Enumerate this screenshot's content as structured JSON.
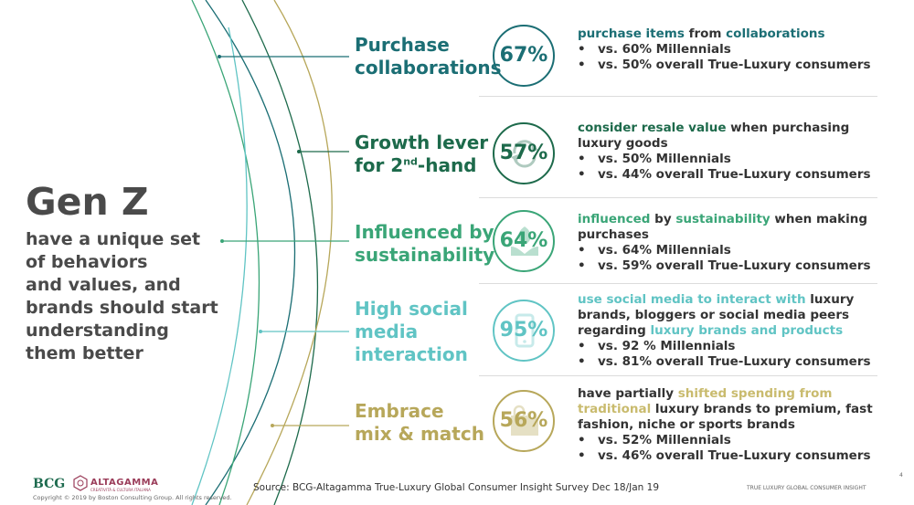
{
  "hero": {
    "title": "Gen Z",
    "subtitle": [
      "have a unique set",
      "of behaviors",
      "and values, and",
      "brands should start",
      "understanding",
      "them better"
    ]
  },
  "colors": {
    "teal_dark": "#1b6e74",
    "green_dark": "#1d6a4b",
    "green": "#3aa577",
    "aqua": "#60c4c4",
    "khaki": "#b7a75a",
    "separator": "#dcdcdc"
  },
  "rows": [
    {
      "label_lines": [
        "Purchase",
        "collaborations"
      ],
      "percent": "67%",
      "icon": "none",
      "desc_lines": [
        [
          {
            "t": "purchase items",
            "c": "#1b6e74"
          },
          {
            "t": " from ",
            "c": "#333"
          },
          {
            "t": "collaborations",
            "c": "#1b6e74"
          }
        ]
      ],
      "bullets": [
        "vs. 60% Millennials",
        "vs. 50% overall True-Luxury consumers"
      ]
    },
    {
      "label_lines": [
        "Growth lever",
        "for 2"
      ],
      "label_sup": "nd",
      "label_tail": "-hand",
      "percent": "57%",
      "icon": "recycle-arrows-icon",
      "desc_lines": [
        [
          {
            "t": "consider resale value",
            "c": "#1d6a4b"
          },
          {
            "t": " when purchasing",
            "c": "#333"
          }
        ],
        [
          {
            "t": "luxury goods",
            "c": "#333"
          }
        ]
      ],
      "bullets": [
        "vs. 50% Millennials",
        "vs. 44% overall True-Luxury consumers"
      ]
    },
    {
      "label_lines": [
        "Influenced by",
        "sustainability"
      ],
      "percent": "64%",
      "icon": "leaf-hands-icon",
      "desc_lines": [
        [
          {
            "t": "influenced",
            "c": "#3aa577"
          },
          {
            "t": " by ",
            "c": "#333"
          },
          {
            "t": "sustainability",
            "c": "#3aa577"
          },
          {
            "t": " when making",
            "c": "#333"
          }
        ],
        [
          {
            "t": "purchases",
            "c": "#333"
          }
        ]
      ],
      "bullets": [
        "vs. 64% Millennials",
        "vs. 59% overall True-Luxury consumers"
      ]
    },
    {
      "label_lines": [
        "High social",
        "media",
        "interaction"
      ],
      "percent": "95%",
      "icon": "smartphone-icon",
      "desc_lines": [
        [
          {
            "t": "use social media to interact with",
            "c": "#60c4c4"
          },
          {
            "t": " luxury",
            "c": "#333"
          }
        ],
        [
          {
            "t": "brands, bloggers or social media peers",
            "c": "#333"
          }
        ],
        [
          {
            "t": "regarding ",
            "c": "#333"
          },
          {
            "t": "luxury brands and products",
            "c": "#60c4c4"
          }
        ]
      ],
      "bullets": [
        "vs. 92 % Millennials",
        "vs. 81% overall True-Luxury consumers"
      ]
    },
    {
      "label_lines": [
        "Embrace",
        "mix & match"
      ],
      "percent": "56%",
      "icon": "shopping-bags-icon",
      "desc_lines": [
        [
          {
            "t": "have partially ",
            "c": "#333"
          },
          {
            "t": "shifted spending from",
            "c": "#c9bb6e"
          }
        ],
        [
          {
            "t": "traditional",
            "c": "#c9bb6e"
          },
          {
            "t": " luxury brands to premium, fast",
            "c": "#333"
          }
        ],
        [
          {
            "t": "fashion, niche or sports brands",
            "c": "#333"
          }
        ]
      ],
      "bullets": [
        "vs. 52% Millennials",
        "vs. 46% overall True-Luxury consumers"
      ]
    }
  ],
  "footer": {
    "bcg": "BCG",
    "altagamma": "ALTAGAMMA",
    "altagamma_sub": "CREATIVITÀ & CULTURA ITALIANA",
    "copyright": "Copyright © 2019 by Boston Consulting Group. All rights reserved.",
    "source": "Source: BCG-Altagamma True-Luxury Global Consumer Insight Survey Dec 18/Jan 19",
    "brand_right": "TRUE LUXURY GLOBAL CONSUMER INSIGHT",
    "page_number": "4"
  }
}
